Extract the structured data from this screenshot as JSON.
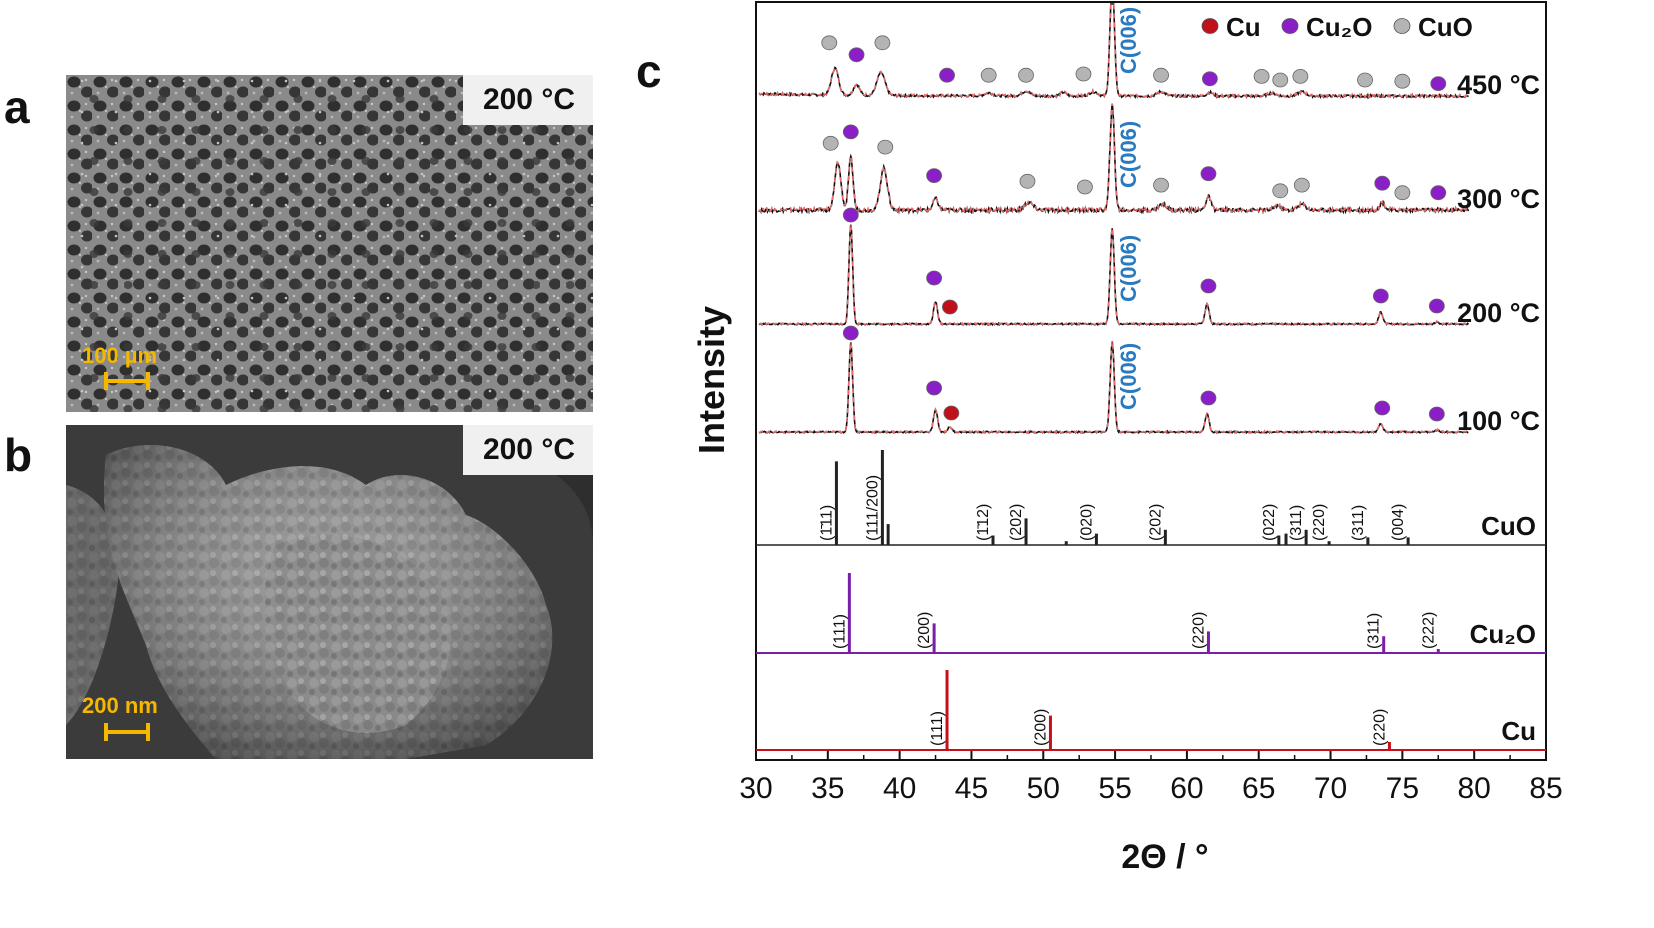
{
  "panels": {
    "a": {
      "letter": "a",
      "temperature": "200 °C",
      "scale": "100 µm"
    },
    "b": {
      "letter": "b",
      "temperature": "200 °C",
      "scale": "200 nm"
    },
    "c": {
      "letter": "c"
    }
  },
  "chart_data": {
    "type": "line",
    "title": "",
    "xlabel": "2Θ / °",
    "ylabel": "Intensity",
    "xlim": [
      30,
      85
    ],
    "xticks": [
      30,
      35,
      40,
      45,
      50,
      55,
      60,
      65,
      70,
      75,
      80,
      85
    ],
    "legend": {
      "placement": "top-right",
      "entries": [
        {
          "name": "Cu",
          "color": "#c0101a"
        },
        {
          "name": "Cu₂O",
          "color": "#8a1fc8"
        },
        {
          "name": "CuO",
          "color": "#b4b4b4"
        }
      ]
    },
    "carbon_label": "C(006)",
    "carbon_peak_x": 54.8,
    "series": [
      {
        "name": "450 °C",
        "peaks": [
          {
            "x": 35.5,
            "h": 0.45,
            "w": 0.35
          },
          {
            "x": 37.0,
            "h": 0.18,
            "w": 0.3
          },
          {
            "x": 38.7,
            "h": 0.38,
            "w": 0.4
          },
          {
            "x": 46.2,
            "h": 0.05,
            "w": 0.4
          },
          {
            "x": 48.8,
            "h": 0.08,
            "w": 0.4
          },
          {
            "x": 51.4,
            "h": 0.06,
            "w": 0.3
          },
          {
            "x": 53.5,
            "h": 0.07,
            "w": 0.4
          },
          {
            "x": 54.8,
            "h": 1.9,
            "w": 0.22
          },
          {
            "x": 58.2,
            "h": 0.07,
            "w": 0.4
          },
          {
            "x": 61.6,
            "h": 0.06,
            "w": 0.3
          },
          {
            "x": 65.9,
            "h": 0.05,
            "w": 0.4
          },
          {
            "x": 68.0,
            "h": 0.07,
            "w": 0.4
          }
        ],
        "markers": [
          {
            "x": 35.1,
            "type": "CuO",
            "y": 0.82
          },
          {
            "x": 37.0,
            "type": "Cu2O",
            "y": 0.62
          },
          {
            "x": 38.8,
            "type": "CuO",
            "y": 0.82
          },
          {
            "x": 43.3,
            "type": "Cu2O",
            "y": 0.28
          },
          {
            "x": 46.2,
            "type": "CuO",
            "y": 0.28
          },
          {
            "x": 48.8,
            "type": "CuO",
            "y": 0.28
          },
          {
            "x": 52.8,
            "type": "CuO",
            "y": 0.3
          },
          {
            "x": 58.2,
            "type": "CuO",
            "y": 0.28
          },
          {
            "x": 61.6,
            "type": "Cu2O",
            "y": 0.22
          },
          {
            "x": 65.2,
            "type": "CuO",
            "y": 0.26
          },
          {
            "x": 66.5,
            "type": "CuO",
            "y": 0.2
          },
          {
            "x": 67.9,
            "type": "CuO",
            "y": 0.26
          },
          {
            "x": 72.4,
            "type": "CuO",
            "y": 0.2
          },
          {
            "x": 75.0,
            "type": "CuO",
            "y": 0.18
          },
          {
            "x": 77.5,
            "type": "Cu2O",
            "y": 0.14
          }
        ]
      },
      {
        "name": "300 °C",
        "peaks": [
          {
            "x": 35.7,
            "h": 0.5,
            "w": 0.3
          },
          {
            "x": 36.6,
            "h": 0.55,
            "w": 0.22
          },
          {
            "x": 38.9,
            "h": 0.44,
            "w": 0.35
          },
          {
            "x": 42.5,
            "h": 0.12,
            "w": 0.25
          },
          {
            "x": 49.0,
            "h": 0.08,
            "w": 0.4
          },
          {
            "x": 54.8,
            "h": 1.1,
            "w": 0.22
          },
          {
            "x": 58.3,
            "h": 0.06,
            "w": 0.4
          },
          {
            "x": 61.5,
            "h": 0.14,
            "w": 0.25
          },
          {
            "x": 66.3,
            "h": 0.05,
            "w": 0.3
          },
          {
            "x": 68.0,
            "h": 0.06,
            "w": 0.4
          },
          {
            "x": 73.6,
            "h": 0.08,
            "w": 0.25
          }
        ],
        "markers": [
          {
            "x": 35.2,
            "type": "CuO",
            "y": 0.66
          },
          {
            "x": 36.6,
            "type": "Cu2O",
            "y": 0.78
          },
          {
            "x": 39.0,
            "type": "CuO",
            "y": 0.62
          },
          {
            "x": 42.4,
            "type": "Cu2O",
            "y": 0.32
          },
          {
            "x": 48.9,
            "type": "CuO",
            "y": 0.26
          },
          {
            "x": 52.9,
            "type": "CuO",
            "y": 0.2
          },
          {
            "x": 58.2,
            "type": "CuO",
            "y": 0.22
          },
          {
            "x": 61.5,
            "type": "Cu2O",
            "y": 0.34
          },
          {
            "x": 66.5,
            "type": "CuO",
            "y": 0.16
          },
          {
            "x": 68.0,
            "type": "CuO",
            "y": 0.22
          },
          {
            "x": 73.6,
            "type": "Cu2O",
            "y": 0.24
          },
          {
            "x": 75.0,
            "type": "CuO",
            "y": 0.14
          },
          {
            "x": 77.5,
            "type": "Cu2O",
            "y": 0.14
          }
        ]
      },
      {
        "name": "200 °C",
        "peaks": [
          {
            "x": 36.6,
            "h": 1.0,
            "w": 0.18
          },
          {
            "x": 42.5,
            "h": 0.22,
            "w": 0.2
          },
          {
            "x": 54.8,
            "h": 0.95,
            "w": 0.2
          },
          {
            "x": 61.4,
            "h": 0.2,
            "w": 0.2
          },
          {
            "x": 73.5,
            "h": 0.12,
            "w": 0.2
          },
          {
            "x": 77.4,
            "h": 0.02,
            "w": 0.2
          }
        ],
        "markers": [
          {
            "x": 36.6,
            "type": "Cu2O",
            "y": 1.05
          },
          {
            "x": 42.4,
            "type": "Cu2O",
            "y": 0.42
          },
          {
            "x": 43.5,
            "type": "Cu",
            "y": 0.13
          },
          {
            "x": 61.5,
            "type": "Cu2O",
            "y": 0.34
          },
          {
            "x": 73.5,
            "type": "Cu2O",
            "y": 0.24
          },
          {
            "x": 77.4,
            "type": "Cu2O",
            "y": 0.14
          }
        ]
      },
      {
        "name": "100 °C",
        "peaks": [
          {
            "x": 36.6,
            "h": 0.9,
            "w": 0.18
          },
          {
            "x": 42.5,
            "h": 0.22,
            "w": 0.2
          },
          {
            "x": 43.5,
            "h": 0.05,
            "w": 0.2
          },
          {
            "x": 54.8,
            "h": 0.9,
            "w": 0.2
          },
          {
            "x": 61.4,
            "h": 0.18,
            "w": 0.2
          },
          {
            "x": 73.5,
            "h": 0.08,
            "w": 0.2
          },
          {
            "x": 77.4,
            "h": 0.02,
            "w": 0.2
          }
        ],
        "markers": [
          {
            "x": 36.6,
            "type": "Cu2O",
            "y": 0.95
          },
          {
            "x": 42.4,
            "type": "Cu2O",
            "y": 0.4
          },
          {
            "x": 43.6,
            "type": "Cu",
            "y": 0.15
          },
          {
            "x": 61.5,
            "type": "Cu2O",
            "y": 0.3
          },
          {
            "x": 73.6,
            "type": "Cu2O",
            "y": 0.2
          },
          {
            "x": 77.4,
            "type": "Cu2O",
            "y": 0.14
          }
        ]
      }
    ],
    "references": [
      {
        "name": "CuO",
        "color": "#222222",
        "lines": [
          {
            "x": 35.6,
            "h": 0.88,
            "hkl": "(1̄11)"
          },
          {
            "x": 38.8,
            "h": 1.0,
            "hkl": "(111/200)"
          },
          {
            "x": 39.2,
            "h": 0.22
          },
          {
            "x": 46.5,
            "h": 0.1,
            "hkl": "(1̄12)"
          },
          {
            "x": 48.8,
            "h": 0.28,
            "hkl": "(202)"
          },
          {
            "x": 51.6,
            "h": 0.04
          },
          {
            "x": 53.7,
            "h": 0.12,
            "hkl": "(020)"
          },
          {
            "x": 58.5,
            "h": 0.16,
            "hkl": "(202)"
          },
          {
            "x": 66.4,
            "h": 0.1,
            "hkl": "(022)"
          },
          {
            "x": 66.9,
            "h": 0.12
          },
          {
            "x": 68.3,
            "h": 0.16,
            "hkl": "(311)"
          },
          {
            "x": 69.9,
            "h": 0.04,
            "hkl": "(220)"
          },
          {
            "x": 72.6,
            "h": 0.08,
            "hkl": "(311)"
          },
          {
            "x": 75.4,
            "h": 0.08,
            "hkl": "(004)"
          }
        ]
      },
      {
        "name": "Cu₂O",
        "color": "#7a1fa8",
        "lines": [
          {
            "x": 36.5,
            "h": 1.0,
            "hkl": "(111)"
          },
          {
            "x": 42.4,
            "h": 0.37,
            "hkl": "(200)"
          },
          {
            "x": 61.5,
            "h": 0.27,
            "hkl": "(220)"
          },
          {
            "x": 73.7,
            "h": 0.21,
            "hkl": "(311)"
          },
          {
            "x": 77.5,
            "h": 0.05,
            "hkl": "(222)"
          }
        ]
      },
      {
        "name": "Cu",
        "color": "#c8101a",
        "lines": [
          {
            "x": 43.3,
            "h": 1.0,
            "hkl": "(111)"
          },
          {
            "x": 50.5,
            "h": 0.43,
            "hkl": "(200)"
          },
          {
            "x": 74.1,
            "h": 0.1,
            "hkl": "(220)"
          }
        ]
      }
    ]
  }
}
